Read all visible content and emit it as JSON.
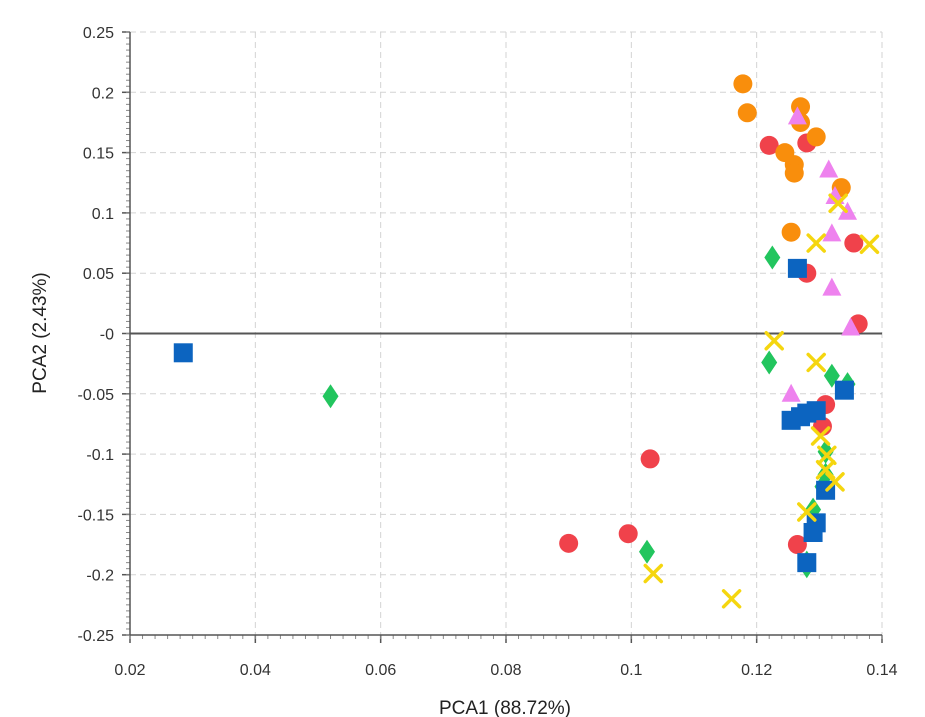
{
  "chart_data": {
    "type": "scatter",
    "xlabel": "PCA1 (88.72%)",
    "ylabel": "PCA2 (2.43%)",
    "xlim": [
      0.02,
      0.14
    ],
    "ylim": [
      -0.25,
      0.25
    ],
    "x_ticks": [
      {
        "value": 0.02,
        "label": "0.02"
      },
      {
        "value": 0.04,
        "label": "0.04"
      },
      {
        "value": 0.06,
        "label": "0.06"
      },
      {
        "value": 0.08,
        "label": "0.08"
      },
      {
        "value": 0.1,
        "label": "0.1"
      },
      {
        "value": 0.12,
        "label": "0.12"
      },
      {
        "value": 0.14,
        "label": "0.14"
      }
    ],
    "y_ticks": [
      {
        "value": 0.25,
        "label": "0.25"
      },
      {
        "value": 0.2,
        "label": "0.2"
      },
      {
        "value": 0.15,
        "label": "0.15"
      },
      {
        "value": 0.1,
        "label": "0.1"
      },
      {
        "value": 0.05,
        "label": "0.05"
      },
      {
        "value": 0,
        "label": "-0"
      },
      {
        "value": -0.05,
        "label": "-0.05"
      },
      {
        "value": -0.1,
        "label": "-0.1"
      },
      {
        "value": -0.15,
        "label": "-0.15"
      },
      {
        "value": -0.2,
        "label": "-0.2"
      },
      {
        "value": -0.25,
        "label": "-0.25"
      }
    ],
    "grid": true,
    "zero_line": true,
    "series": [
      {
        "marker": "circle",
        "color": "#f0424b",
        "points": [
          [
            0.122,
            0.156
          ],
          [
            0.128,
            0.158
          ],
          [
            0.1355,
            0.075
          ],
          [
            0.128,
            0.05
          ],
          [
            0.1362,
            0.008
          ],
          [
            0.131,
            -0.059
          ],
          [
            0.1305,
            -0.077
          ],
          [
            0.103,
            -0.104
          ],
          [
            0.0995,
            -0.166
          ],
          [
            0.09,
            -0.174
          ],
          [
            0.1265,
            -0.175
          ]
        ]
      },
      {
        "marker": "circle",
        "color": "#f98e0c",
        "points": [
          [
            0.1178,
            0.207
          ],
          [
            0.1185,
            0.183
          ],
          [
            0.127,
            0.188
          ],
          [
            0.127,
            0.175
          ],
          [
            0.1295,
            0.163
          ],
          [
            0.1245,
            0.15
          ],
          [
            0.126,
            0.14
          ],
          [
            0.126,
            0.133
          ],
          [
            0.1335,
            0.121
          ],
          [
            0.1255,
            0.084
          ]
        ]
      },
      {
        "marker": "triangle",
        "color": "#ee82ee",
        "points": [
          [
            0.1265,
            0.18
          ],
          [
            0.1315,
            0.136
          ],
          [
            0.1325,
            0.114
          ],
          [
            0.1345,
            0.101
          ],
          [
            0.132,
            0.083
          ],
          [
            0.132,
            0.038
          ],
          [
            0.135,
            0.005
          ],
          [
            0.1255,
            -0.05
          ]
        ]
      },
      {
        "marker": "cross",
        "color": "#f5d60f",
        "points": [
          [
            0.133,
            0.108
          ],
          [
            0.138,
            0.074
          ],
          [
            0.1295,
            0.075
          ],
          [
            0.1228,
            -0.006
          ],
          [
            0.1295,
            -0.024
          ],
          [
            0.1302,
            -0.085
          ],
          [
            0.1312,
            -0.101
          ],
          [
            0.131,
            -0.113
          ],
          [
            0.1325,
            -0.123
          ],
          [
            0.128,
            -0.148
          ],
          [
            0.1035,
            -0.199
          ],
          [
            0.116,
            -0.22
          ]
        ]
      },
      {
        "marker": "diamond",
        "color": "#22c55e",
        "points": [
          [
            0.1225,
            0.063
          ],
          [
            0.122,
            -0.024
          ],
          [
            0.132,
            -0.035
          ],
          [
            0.1345,
            -0.042
          ],
          [
            0.052,
            -0.052
          ],
          [
            0.131,
            -0.098
          ],
          [
            0.131,
            -0.117
          ],
          [
            0.1305,
            -0.127
          ],
          [
            0.129,
            -0.146
          ],
          [
            0.1025,
            -0.181
          ],
          [
            0.128,
            -0.19
          ],
          [
            0.128,
            -0.193
          ]
        ]
      },
      {
        "marker": "square",
        "color": "#0c64c0",
        "points": [
          [
            0.0285,
            -0.016
          ],
          [
            0.1265,
            0.054
          ],
          [
            0.134,
            -0.047
          ],
          [
            0.1295,
            -0.064
          ],
          [
            0.128,
            -0.066
          ],
          [
            0.127,
            -0.069
          ],
          [
            0.1255,
            -0.072
          ],
          [
            0.131,
            -0.13
          ],
          [
            0.1295,
            -0.157
          ],
          [
            0.129,
            -0.165
          ],
          [
            0.128,
            -0.19
          ]
        ]
      }
    ]
  }
}
